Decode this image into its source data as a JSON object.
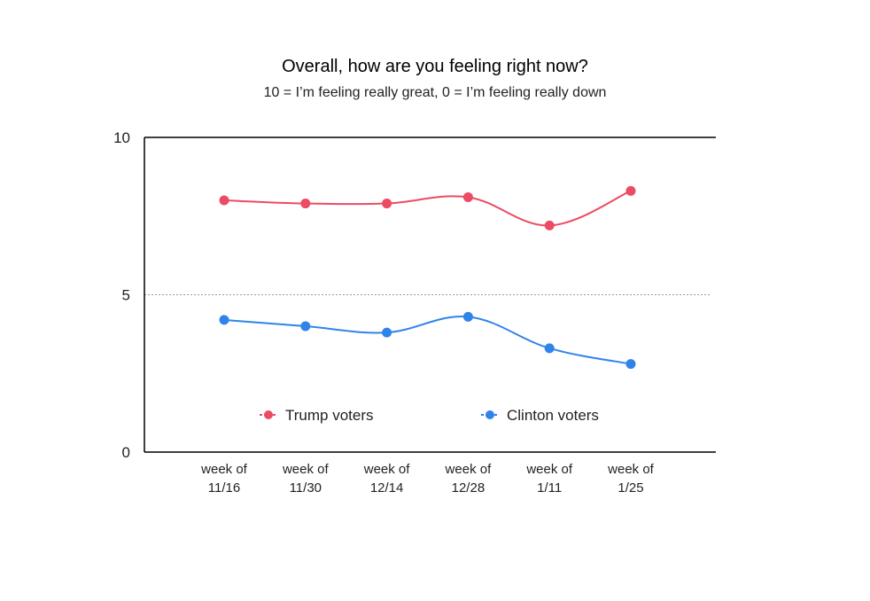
{
  "chart_data": {
    "type": "line",
    "title": "Overall, how are you feeling right now?",
    "subtitle": "10 = I’m feeling really great, 0 = I’m feeling really down",
    "xlabel": "",
    "ylabel": "",
    "categories": [
      [
        "week of",
        "11/16"
      ],
      [
        "week of",
        "11/30"
      ],
      [
        "week of",
        "12/14"
      ],
      [
        "week of",
        "12/28"
      ],
      [
        "week of",
        "1/11"
      ],
      [
        "week of",
        "1/25"
      ]
    ],
    "yticks": [
      "0",
      "5",
      "10"
    ],
    "ylim": [
      0,
      10
    ],
    "smooth": true,
    "legend_position": "bottom-inside",
    "reference_line": {
      "y": 5,
      "style": "dotted"
    },
    "series": [
      {
        "name": "Trump voters",
        "color": "#ec4b63",
        "values": [
          8.0,
          7.9,
          7.9,
          8.1,
          7.2,
          8.3
        ]
      },
      {
        "name": "Clinton voters",
        "color": "#2f84ea",
        "values": [
          4.2,
          4.0,
          3.8,
          4.3,
          3.3,
          2.8
        ]
      }
    ]
  }
}
